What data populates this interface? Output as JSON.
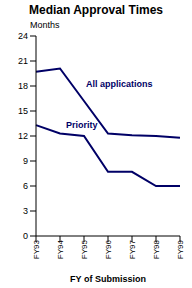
{
  "chart_data": {
    "type": "line",
    "title": "Median Approval Times",
    "y_label": "Months",
    "x_label": "FY of Submission",
    "categories": [
      "FY93",
      "FY94",
      "FY95",
      "FY96",
      "FY97",
      "FY98",
      "FY99"
    ],
    "series": [
      {
        "name": "All applications",
        "color": "#000066",
        "values": [
          19.7,
          20.1,
          16.2,
          12.3,
          12.1,
          12.0,
          11.8
        ]
      },
      {
        "name": "Priority",
        "color": "#000066",
        "values": [
          13.3,
          12.3,
          12.0,
          7.7,
          7.7,
          6.0,
          6.0
        ]
      }
    ],
    "ylim": [
      0,
      24
    ],
    "yticks": [
      0,
      3,
      6,
      9,
      12,
      15,
      18,
      21,
      24
    ],
    "grid": false
  }
}
